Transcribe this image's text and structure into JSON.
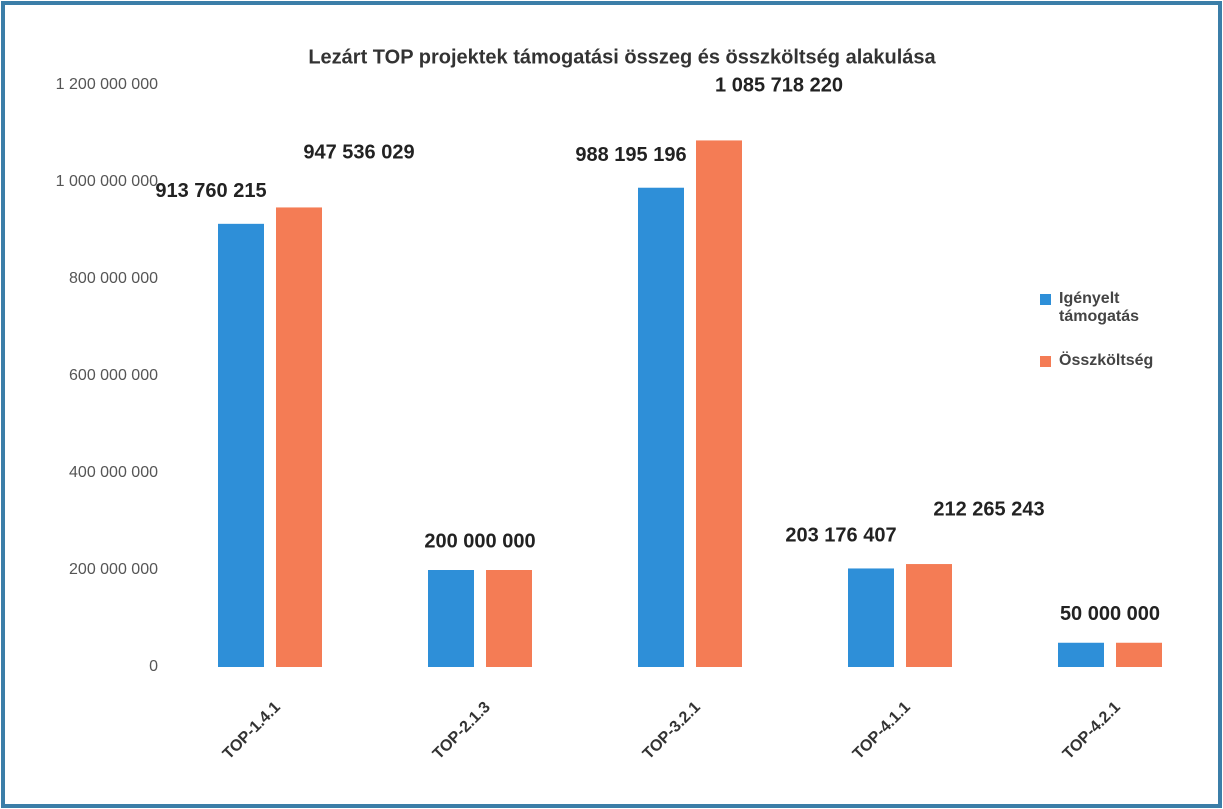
{
  "chart_data": {
    "type": "bar",
    "title": "Lezárt TOP projektek támogatási összeg és összköltség alakulása",
    "categories": [
      "TOP-1.4.1",
      "TOP-2.1.3",
      "TOP-3.2.1",
      "TOP-4.1.1",
      "TOP-4.2.1"
    ],
    "series": [
      {
        "name": "Igényelt támogatás",
        "color": "#2e8fd8",
        "values": [
          913760215,
          200000000,
          988195196,
          203176407,
          50000000
        ],
        "value_labels": [
          "913 760 215",
          "200 000 000",
          "988 195 196",
          "203 176 407",
          "50 000 000"
        ]
      },
      {
        "name": "Összköltség",
        "color": "#f47c55",
        "values": [
          947536029,
          200000000,
          1085718220,
          212265243,
          50000000
        ],
        "value_labels": [
          "947 536 029",
          null,
          "1 085 718 220",
          "212 265 243",
          null
        ]
      }
    ],
    "ylim": [
      0,
      1200000000
    ],
    "yticks": [
      {
        "value": 0,
        "label": "0"
      },
      {
        "value": 200000000,
        "label": "200 000 000"
      },
      {
        "value": 400000000,
        "label": "400 000 000"
      },
      {
        "value": 600000000,
        "label": "600 000 000"
      },
      {
        "value": 800000000,
        "label": "800 000 000"
      },
      {
        "value": 1000000000,
        "label": "1 000 000 000"
      },
      {
        "value": 1200000000,
        "label": "1 200 000 000"
      }
    ],
    "grid": false,
    "legend": "right"
  }
}
